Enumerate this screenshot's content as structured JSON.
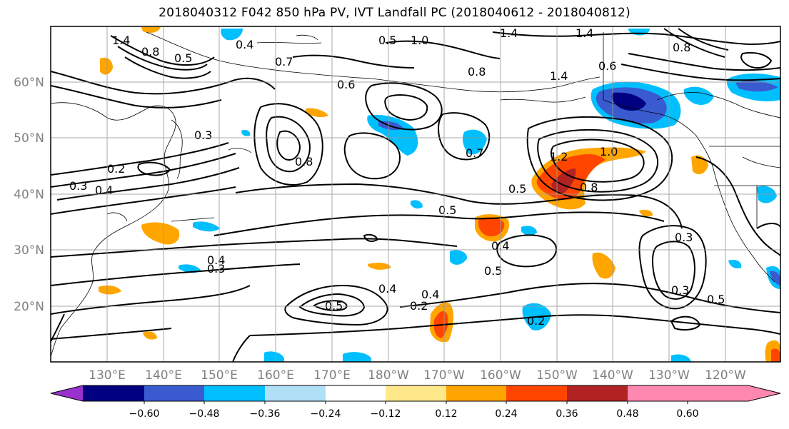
{
  "title": "2018040312 F042 850 hPa PV, IVT Landfall PC (2018040612 - 2018040812)",
  "lat_labels": [
    "60°N",
    "50°N",
    "40°N",
    "30°N",
    "20°N"
  ],
  "lon_labels": [
    "130°E",
    "140°E",
    "150°E",
    "160°E",
    "170°E",
    "180°W",
    "170°W",
    "160°W",
    "150°W",
    "140°W",
    "130°W",
    "120°W"
  ],
  "colorbar": {
    "ticks": [
      "−0.60",
      "−0.48",
      "−0.36",
      "−0.24",
      "−0.12",
      "0.12",
      "0.24",
      "0.36",
      "0.48",
      "0.60"
    ],
    "colors": [
      "#9932cc",
      "#000080",
      "#3a5bd0",
      "#00bfff",
      "#b0e0f8",
      "#ffffff",
      "#ffe88a",
      "#ffa500",
      "#ff4500",
      "#b22222",
      "#ff88b0"
    ]
  },
  "contour_labels": [
    "1.4",
    "0.8",
    "0.5",
    "0.4",
    "0.7",
    "0.6",
    "0.5",
    "1.0",
    "1.4",
    "1.4",
    "0.8",
    "0.8",
    "0.6",
    "1.4",
    "0.3",
    "0.2",
    "0.3",
    "0.4",
    "0.8",
    "0.7",
    "0.5",
    "0.5",
    "1.2",
    "1.0",
    "0.8",
    "0.4",
    "0.3",
    "0.4",
    "0.5",
    "0.4",
    "0.2",
    "0.5",
    "0.4",
    "0.2",
    "0.3",
    "0.5",
    "0.3"
  ]
}
